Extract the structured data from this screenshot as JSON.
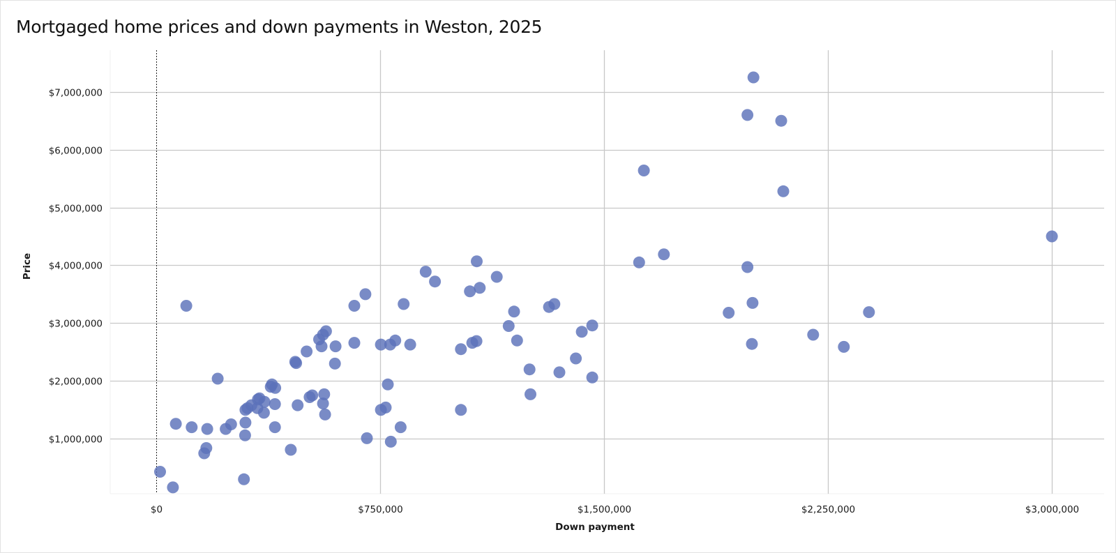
{
  "title": "Mortgaged home prices and down payments in Weston, 2025",
  "colors": {
    "point": "#5b71b9",
    "grid": "#c8c8c8",
    "zero_line": "#222222"
  },
  "chart_data": {
    "type": "scatter",
    "title": "Mortgaged home prices and down payments in Weston, 2025",
    "xlabel": "Down payment",
    "ylabel": "Price",
    "x_ticks": [
      "$0",
      "$750,000",
      "$1,500,000",
      "$2,250,000",
      "$3,000,000"
    ],
    "x_tick_values": [
      0,
      750000,
      1500000,
      2250000,
      3000000
    ],
    "y_ticks": [
      "$1,000,000",
      "$2,000,000",
      "$3,000,000",
      "$4,000,000",
      "$5,000,000",
      "$6,000,000",
      "$7,000,000"
    ],
    "y_tick_values": [
      1000000,
      2000000,
      3000000,
      4000000,
      5000000,
      6000000,
      7000000
    ],
    "xlim": [
      -155000,
      3175000
    ],
    "ylim": [
      50000,
      7720000
    ],
    "grid": true,
    "legend": null,
    "points": [
      {
        "x": 12000,
        "y": 430000
      },
      {
        "x": 55000,
        "y": 160000
      },
      {
        "x": 65000,
        "y": 1260000
      },
      {
        "x": 100000,
        "y": 3300000
      },
      {
        "x": 118000,
        "y": 1200000
      },
      {
        "x": 160000,
        "y": 750000
      },
      {
        "x": 167000,
        "y": 840000
      },
      {
        "x": 170000,
        "y": 1170000
      },
      {
        "x": 205000,
        "y": 2040000
      },
      {
        "x": 232000,
        "y": 1170000
      },
      {
        "x": 250000,
        "y": 1250000
      },
      {
        "x": 293000,
        "y": 300000
      },
      {
        "x": 297000,
        "y": 1060000
      },
      {
        "x": 298000,
        "y": 1280000
      },
      {
        "x": 298000,
        "y": 1500000
      },
      {
        "x": 305000,
        "y": 1530000
      },
      {
        "x": 318000,
        "y": 1580000
      },
      {
        "x": 338000,
        "y": 1530000
      },
      {
        "x": 340000,
        "y": 1680000
      },
      {
        "x": 345000,
        "y": 1700000
      },
      {
        "x": 360000,
        "y": 1450000
      },
      {
        "x": 362000,
        "y": 1640000
      },
      {
        "x": 383000,
        "y": 1900000
      },
      {
        "x": 387000,
        "y": 1940000
      },
      {
        "x": 397000,
        "y": 1200000
      },
      {
        "x": 397000,
        "y": 1600000
      },
      {
        "x": 398000,
        "y": 1880000
      },
      {
        "x": 450000,
        "y": 810000
      },
      {
        "x": 465000,
        "y": 2330000
      },
      {
        "x": 468000,
        "y": 2310000
      },
      {
        "x": 473000,
        "y": 1580000
      },
      {
        "x": 503000,
        "y": 2510000
      },
      {
        "x": 513000,
        "y": 1720000
      },
      {
        "x": 522000,
        "y": 1750000
      },
      {
        "x": 545000,
        "y": 2720000
      },
      {
        "x": 553000,
        "y": 2600000
      },
      {
        "x": 558000,
        "y": 2800000
      },
      {
        "x": 558000,
        "y": 1610000
      },
      {
        "x": 562000,
        "y": 1770000
      },
      {
        "x": 565000,
        "y": 1420000
      },
      {
        "x": 568000,
        "y": 2860000
      },
      {
        "x": 598000,
        "y": 2300000
      },
      {
        "x": 600000,
        "y": 2600000
      },
      {
        "x": 663000,
        "y": 2660000
      },
      {
        "x": 663000,
        "y": 3300000
      },
      {
        "x": 700000,
        "y": 3500000
      },
      {
        "x": 705000,
        "y": 1010000
      },
      {
        "x": 752000,
        "y": 1500000
      },
      {
        "x": 752000,
        "y": 2630000
      },
      {
        "x": 768000,
        "y": 1540000
      },
      {
        "x": 775000,
        "y": 1940000
      },
      {
        "x": 783000,
        "y": 2630000
      },
      {
        "x": 785000,
        "y": 950000
      },
      {
        "x": 800000,
        "y": 2700000
      },
      {
        "x": 818000,
        "y": 1200000
      },
      {
        "x": 828000,
        "y": 3330000
      },
      {
        "x": 850000,
        "y": 2630000
      },
      {
        "x": 902000,
        "y": 3890000
      },
      {
        "x": 933000,
        "y": 3720000
      },
      {
        "x": 1020000,
        "y": 1500000
      },
      {
        "x": 1020000,
        "y": 2550000
      },
      {
        "x": 1050000,
        "y": 3550000
      },
      {
        "x": 1058000,
        "y": 2660000
      },
      {
        "x": 1072000,
        "y": 2690000
      },
      {
        "x": 1073000,
        "y": 4070000
      },
      {
        "x": 1083000,
        "y": 3610000
      },
      {
        "x": 1140000,
        "y": 3800000
      },
      {
        "x": 1180000,
        "y": 2950000
      },
      {
        "x": 1198000,
        "y": 3200000
      },
      {
        "x": 1208000,
        "y": 2700000
      },
      {
        "x": 1250000,
        "y": 2200000
      },
      {
        "x": 1253000,
        "y": 1770000
      },
      {
        "x": 1315000,
        "y": 3280000
      },
      {
        "x": 1333000,
        "y": 3330000
      },
      {
        "x": 1350000,
        "y": 2150000
      },
      {
        "x": 1405000,
        "y": 2390000
      },
      {
        "x": 1425000,
        "y": 2850000
      },
      {
        "x": 1460000,
        "y": 2960000
      },
      {
        "x": 1460000,
        "y": 2060000
      },
      {
        "x": 1617000,
        "y": 4050000
      },
      {
        "x": 1633000,
        "y": 5640000
      },
      {
        "x": 1700000,
        "y": 4190000
      },
      {
        "x": 1917000,
        "y": 3180000
      },
      {
        "x": 1980000,
        "y": 3970000
      },
      {
        "x": 1980000,
        "y": 6600000
      },
      {
        "x": 1995000,
        "y": 2640000
      },
      {
        "x": 1997000,
        "y": 3350000
      },
      {
        "x": 2000000,
        "y": 7250000
      },
      {
        "x": 2093000,
        "y": 6500000
      },
      {
        "x": 2100000,
        "y": 5280000
      },
      {
        "x": 2200000,
        "y": 2800000
      },
      {
        "x": 2303000,
        "y": 2590000
      },
      {
        "x": 2387000,
        "y": 3190000
      },
      {
        "x": 3000000,
        "y": 4500000
      }
    ]
  }
}
